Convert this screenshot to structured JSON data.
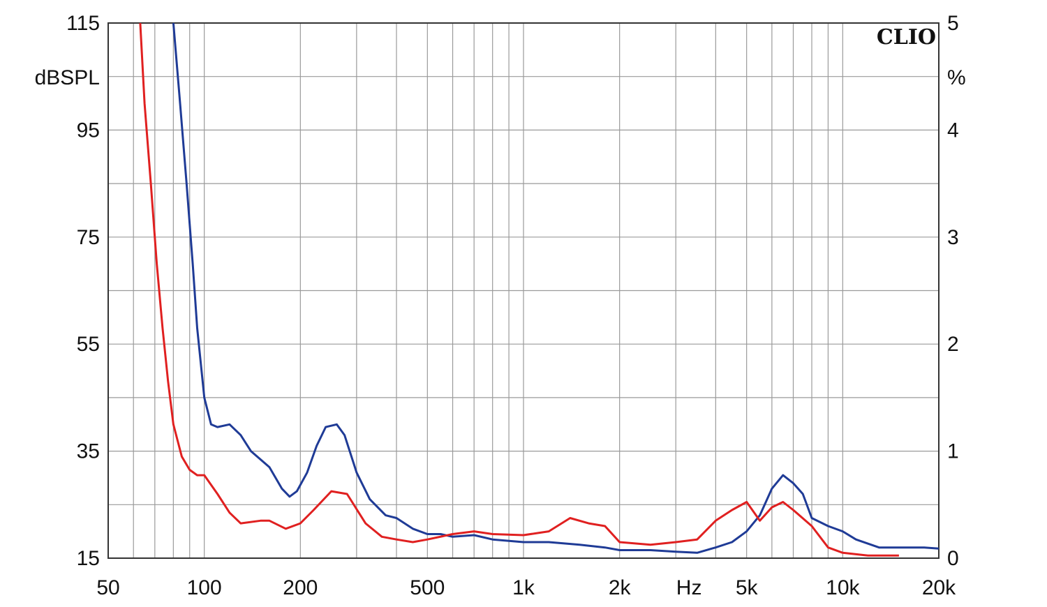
{
  "chart_data": {
    "type": "line",
    "brand": "CLIO",
    "x_scale": "log",
    "xlim": [
      50,
      20000
    ],
    "y_left": {
      "unit_label": "dBSPL",
      "range": [
        15,
        115
      ],
      "ticks": [
        "115",
        "95",
        "75",
        "55",
        "35",
        "15"
      ],
      "tick_values": [
        115,
        95,
        75,
        55,
        35,
        15
      ]
    },
    "y_right": {
      "unit_label": "%",
      "range": [
        0,
        5
      ],
      "ticks": [
        "5",
        "4",
        "3",
        "2",
        "1",
        "0"
      ],
      "tick_values": [
        5,
        4,
        3,
        2,
        1,
        0
      ]
    },
    "x_ticks": [
      {
        "label": "50",
        "value": 50
      },
      {
        "label": "100",
        "value": 100
      },
      {
        "label": "200",
        "value": 200
      },
      {
        "label": "500",
        "value": 500
      },
      {
        "label": "1k",
        "value": 1000
      },
      {
        "label": "2k",
        "value": 2000
      },
      {
        "label": "5k",
        "value": 5000
      },
      {
        "label": "10k",
        "value": 10000
      },
      {
        "label": "20k",
        "value": 20000
      }
    ],
    "x_unit_label": "Hz",
    "grid": true,
    "series": [
      {
        "color": "#1f3b96",
        "axis": "left",
        "points": [
          [
            80,
            115
          ],
          [
            84,
            100
          ],
          [
            88,
            85
          ],
          [
            92,
            70
          ],
          [
            95,
            58
          ],
          [
            100,
            45
          ],
          [
            105,
            40
          ],
          [
            110,
            39.5
          ],
          [
            120,
            40
          ],
          [
            130,
            38
          ],
          [
            140,
            35
          ],
          [
            160,
            32
          ],
          [
            175,
            28
          ],
          [
            185,
            26.5
          ],
          [
            195,
            27.5
          ],
          [
            210,
            31
          ],
          [
            225,
            36
          ],
          [
            240,
            39.5
          ],
          [
            260,
            40
          ],
          [
            275,
            38
          ],
          [
            300,
            31
          ],
          [
            330,
            26
          ],
          [
            370,
            23
          ],
          [
            400,
            22.5
          ],
          [
            450,
            20.5
          ],
          [
            500,
            19.5
          ],
          [
            550,
            19.5
          ],
          [
            600,
            19
          ],
          [
            700,
            19.3
          ],
          [
            800,
            18.5
          ],
          [
            1000,
            18
          ],
          [
            1200,
            18
          ],
          [
            1500,
            17.5
          ],
          [
            1800,
            17
          ],
          [
            2000,
            16.5
          ],
          [
            2500,
            16.5
          ],
          [
            3000,
            16.2
          ],
          [
            3500,
            16
          ],
          [
            4000,
            17
          ],
          [
            4500,
            18
          ],
          [
            5000,
            20
          ],
          [
            5500,
            23
          ],
          [
            6000,
            28
          ],
          [
            6500,
            30.5
          ],
          [
            7000,
            29
          ],
          [
            7500,
            27
          ],
          [
            8000,
            22.5
          ],
          [
            9000,
            21
          ],
          [
            10000,
            20
          ],
          [
            11000,
            18.5
          ],
          [
            13000,
            17
          ],
          [
            15000,
            17
          ],
          [
            18000,
            17
          ],
          [
            20000,
            16.8
          ]
        ]
      },
      {
        "color": "#e02020",
        "axis": "left",
        "points": [
          [
            63,
            115
          ],
          [
            65,
            100
          ],
          [
            68,
            85
          ],
          [
            71,
            70
          ],
          [
            74,
            58
          ],
          [
            77,
            48
          ],
          [
            80,
            40
          ],
          [
            85,
            34
          ],
          [
            90,
            31.5
          ],
          [
            95,
            30.5
          ],
          [
            100,
            30.5
          ],
          [
            110,
            27
          ],
          [
            120,
            23.5
          ],
          [
            130,
            21.5
          ],
          [
            150,
            22
          ],
          [
            160,
            22
          ],
          [
            180,
            20.5
          ],
          [
            200,
            21.5
          ],
          [
            220,
            24
          ],
          [
            250,
            27.5
          ],
          [
            280,
            27
          ],
          [
            320,
            21.5
          ],
          [
            360,
            19
          ],
          [
            400,
            18.5
          ],
          [
            450,
            18
          ],
          [
            500,
            18.5
          ],
          [
            600,
            19.5
          ],
          [
            700,
            20
          ],
          [
            800,
            19.5
          ],
          [
            1000,
            19.3
          ],
          [
            1200,
            20
          ],
          [
            1400,
            22.5
          ],
          [
            1600,
            21.5
          ],
          [
            1800,
            21
          ],
          [
            2000,
            18
          ],
          [
            2500,
            17.5
          ],
          [
            3000,
            18
          ],
          [
            3500,
            18.5
          ],
          [
            4000,
            22
          ],
          [
            4500,
            24
          ],
          [
            5000,
            25.5
          ],
          [
            5500,
            22
          ],
          [
            6000,
            24.5
          ],
          [
            6500,
            25.5
          ],
          [
            7000,
            24
          ],
          [
            8000,
            21
          ],
          [
            9000,
            17
          ],
          [
            10000,
            16
          ],
          [
            12000,
            15.5
          ],
          [
            14000,
            15.5
          ],
          [
            15000,
            15.5
          ]
        ]
      }
    ]
  }
}
